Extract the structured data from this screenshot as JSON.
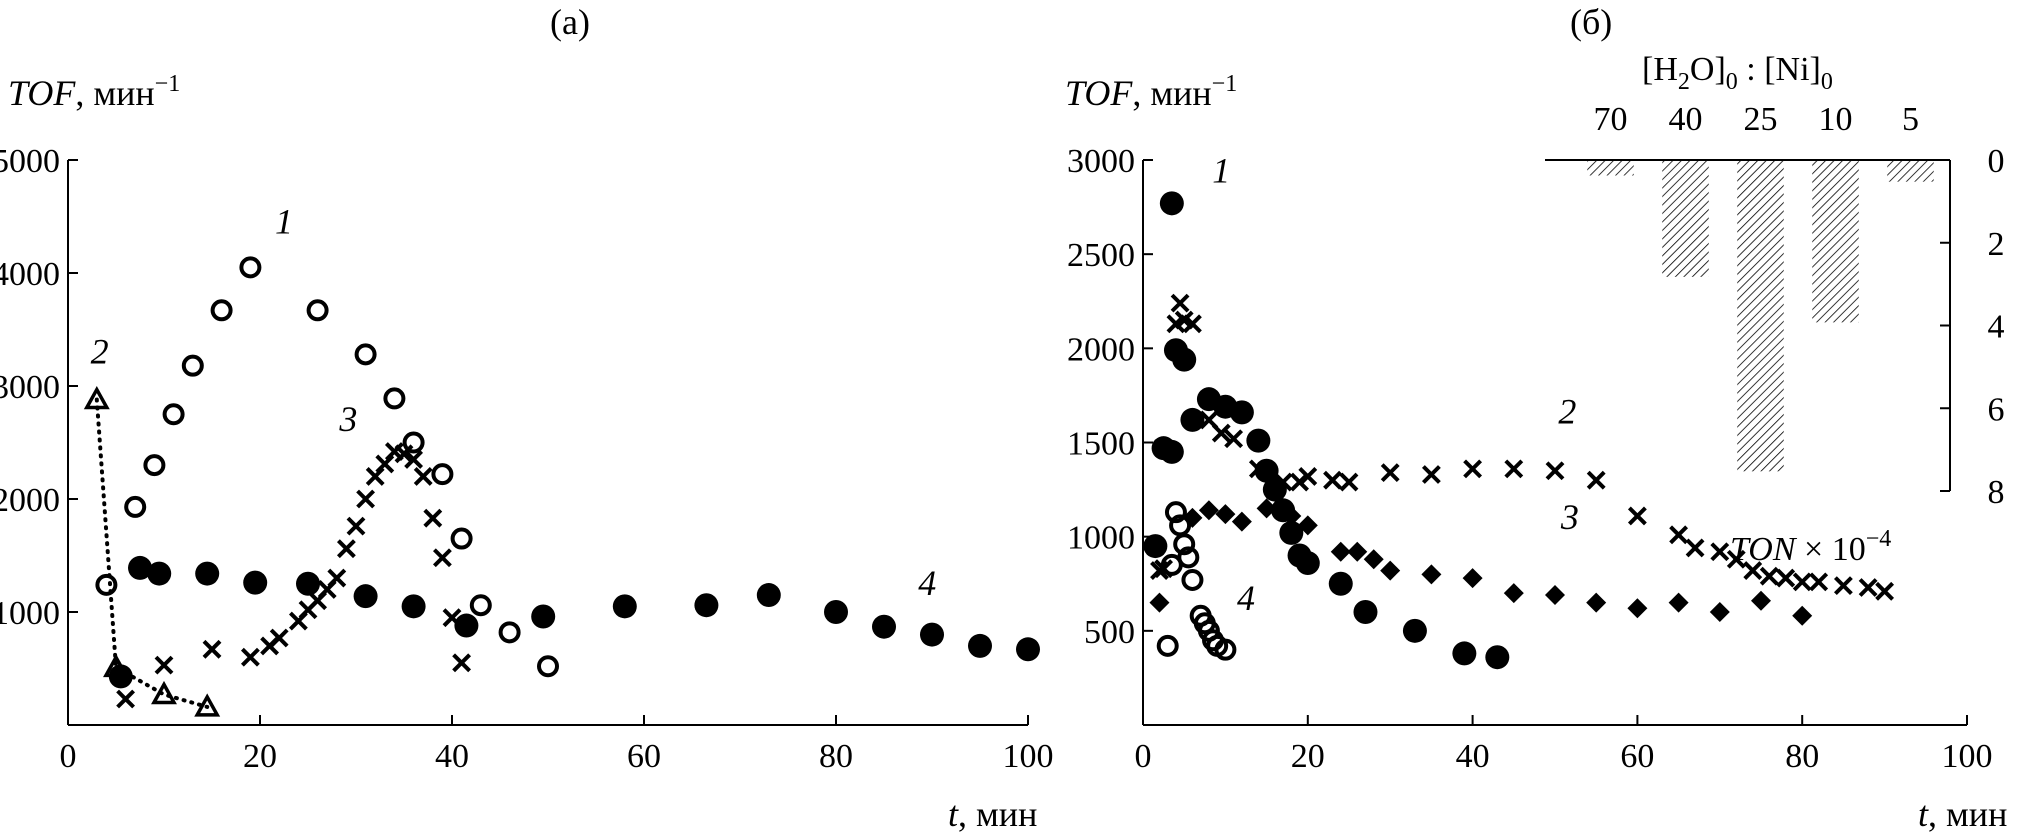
{
  "panels": {
    "a": {
      "label": "(а)"
    },
    "b": {
      "label": "(б)"
    }
  },
  "chart_data": [
    {
      "id": "a",
      "type": "scatter",
      "ylabel_name": "TOF",
      "ylabel_unit": ", мин",
      "ylabel_sup": "−1",
      "xlabel_name": "t",
      "xlabel_unit": ", мин",
      "xlim": [
        0,
        100
      ],
      "ylim": [
        0,
        5000
      ],
      "xticks": [
        0,
        20,
        40,
        60,
        80,
        100
      ],
      "yticks": [
        1000,
        2000,
        3000,
        4000,
        5000
      ],
      "grid": false,
      "series": [
        {
          "id": "1",
          "marker": "open-circle",
          "connected": false,
          "x": [
            4,
            7,
            9,
            11,
            13,
            16,
            19,
            26,
            31,
            34,
            36,
            39,
            41,
            43,
            46,
            50
          ],
          "y": [
            1240,
            1930,
            2300,
            2750,
            3180,
            3670,
            4050,
            3670,
            3280,
            2890,
            2500,
            2220,
            1650,
            1060,
            820,
            520
          ]
        },
        {
          "id": "2",
          "marker": "open-triangle",
          "connected": true,
          "x": [
            3,
            5,
            10,
            14.5
          ],
          "y": [
            2880,
            510,
            270,
            160
          ]
        },
        {
          "id": "3",
          "marker": "cross",
          "x": [
            6,
            10,
            15,
            19,
            21,
            22,
            24,
            25,
            26,
            27,
            28,
            29,
            30,
            31,
            32,
            33,
            34,
            35,
            36,
            37,
            38,
            39,
            40,
            41
          ],
          "y": [
            230,
            530,
            670,
            600,
            700,
            770,
            920,
            1020,
            1100,
            1200,
            1300,
            1560,
            1760,
            2000,
            2200,
            2310,
            2420,
            2400,
            2350,
            2200,
            1830,
            1480,
            950,
            550
          ]
        },
        {
          "id": "4",
          "marker": "filled-circle",
          "x": [
            5.5,
            7.5,
            9.5,
            14.5,
            19.5,
            25,
            31,
            36,
            41.5,
            49.5,
            58,
            66.5,
            73,
            80,
            85,
            90,
            95,
            100
          ],
          "y": [
            430,
            1390,
            1340,
            1340,
            1260,
            1250,
            1140,
            1050,
            880,
            960,
            1050,
            1060,
            1150,
            1000,
            870,
            800,
            700,
            670
          ]
        }
      ],
      "series_labels": [
        {
          "text": "1",
          "x": 22.5,
          "y": 4350
        },
        {
          "text": "2",
          "x": 3.3,
          "y": 3200
        },
        {
          "text": "3",
          "x": 29.2,
          "y": 2600
        },
        {
          "text": "4",
          "x": 89.5,
          "y": 1150
        }
      ]
    },
    {
      "id": "b",
      "type": "scatter",
      "ylabel_name": "TOF",
      "ylabel_unit": ", мин",
      "ylabel_sup": "−1",
      "xlabel_name": "t",
      "xlabel_unit": ", мин",
      "xlim": [
        0,
        100
      ],
      "ylim": [
        0,
        3000
      ],
      "xticks": [
        0,
        20,
        40,
        60,
        80,
        100
      ],
      "yticks": [
        500,
        1000,
        1500,
        2000,
        2500,
        3000
      ],
      "grid": false,
      "series": [
        {
          "id": "1",
          "marker": "filled-circle",
          "x": [
            1.5,
            2.5,
            3.5,
            3.5,
            4,
            5,
            6,
            8,
            10,
            12,
            14,
            15,
            16,
            17,
            18,
            19,
            20,
            24,
            27,
            33,
            39,
            43
          ],
          "y": [
            950,
            1470,
            1450,
            2770,
            1990,
            1940,
            1620,
            1730,
            1690,
            1660,
            1510,
            1350,
            1250,
            1140,
            1020,
            900,
            860,
            750,
            600,
            500,
            380,
            360
          ]
        },
        {
          "id": "2",
          "marker": "cross",
          "x": [
            2,
            2.5,
            4,
            4.5,
            5,
            6,
            8,
            9.5,
            11,
            14,
            17,
            19,
            20,
            23,
            25,
            30,
            35,
            40,
            45,
            50,
            55,
            60,
            65,
            67,
            70,
            72,
            74,
            76,
            78,
            80,
            82,
            85,
            88,
            90
          ],
          "y": [
            820,
            830,
            2130,
            2240,
            2150,
            2130,
            1620,
            1550,
            1520,
            1360,
            1290,
            1290,
            1320,
            1300,
            1290,
            1340,
            1330,
            1360,
            1360,
            1350,
            1300,
            1110,
            1010,
            940,
            920,
            880,
            820,
            790,
            780,
            760,
            760,
            740,
            730,
            710
          ]
        },
        {
          "id": "3",
          "marker": "filled-diamond",
          "x": [
            2,
            6,
            8,
            10,
            12,
            15,
            18,
            20,
            24,
            26,
            28,
            30,
            35,
            40,
            45,
            50,
            55,
            60,
            65,
            70,
            75,
            80
          ],
          "y": [
            650,
            1100,
            1140,
            1120,
            1080,
            1150,
            1110,
            1060,
            920,
            920,
            880,
            820,
            800,
            780,
            700,
            690,
            650,
            620,
            650,
            600,
            660,
            580
          ]
        },
        {
          "id": "4",
          "marker": "open-circle",
          "x": [
            3,
            3.5,
            4,
            4.5,
            5,
            5.5,
            6,
            7,
            7.5,
            8,
            8.5,
            9,
            10
          ],
          "y": [
            420,
            850,
            1130,
            1060,
            960,
            890,
            770,
            580,
            540,
            500,
            450,
            420,
            400
          ]
        }
      ],
      "series_labels": [
        {
          "text": "1",
          "x": 9.5,
          "y": 2880
        },
        {
          "text": "2",
          "x": 51.5,
          "y": 1600
        },
        {
          "text": "3",
          "x": 51.8,
          "y": 1040
        },
        {
          "text": "4",
          "x": 12.5,
          "y": 610
        }
      ]
    },
    {
      "id": "b-inset",
      "type": "bar",
      "orientation": "downward",
      "title_parts": [
        "[H",
        "2",
        "O]",
        "0",
        " : [Ni]",
        "0"
      ],
      "ylabel_parts": [
        "TON",
        " × 10",
        "−4"
      ],
      "categories": [
        "70",
        "40",
        "25",
        "10",
        "5"
      ],
      "values": [
        0.35,
        2.8,
        7.5,
        3.9,
        0.5
      ],
      "ylim": [
        0,
        8
      ],
      "yticks": [
        0,
        2,
        4,
        6,
        8
      ],
      "fill": "hatched"
    }
  ]
}
